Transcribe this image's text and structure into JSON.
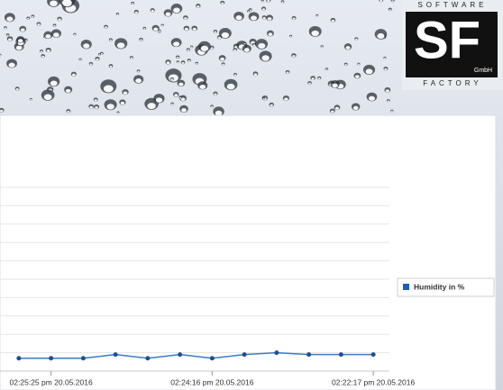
{
  "logo": {
    "top": "SOFTWARE",
    "main": "SF",
    "sub": "GmbH",
    "bottom": "FACTORY"
  },
  "chart_data": {
    "type": "line",
    "categories": [
      null,
      "02:25:25 pm 20.05.2016",
      null,
      null,
      null,
      null,
      "02:24:16 pm 20.05.2016",
      null,
      null,
      null,
      null,
      "02:22:17 pm 20.05.2016"
    ],
    "series": [
      {
        "name": "Humidity in %",
        "color": "#3a7cc4",
        "values": [
          7,
          7,
          7,
          9,
          7,
          9,
          7,
          9,
          10,
          9,
          9,
          9
        ]
      }
    ],
    "ylim": [
      0,
      100
    ],
    "yticks": [
      0,
      10,
      20,
      30,
      40,
      50,
      60,
      70,
      80,
      90,
      100
    ],
    "grid": true,
    "legend": "right"
  }
}
